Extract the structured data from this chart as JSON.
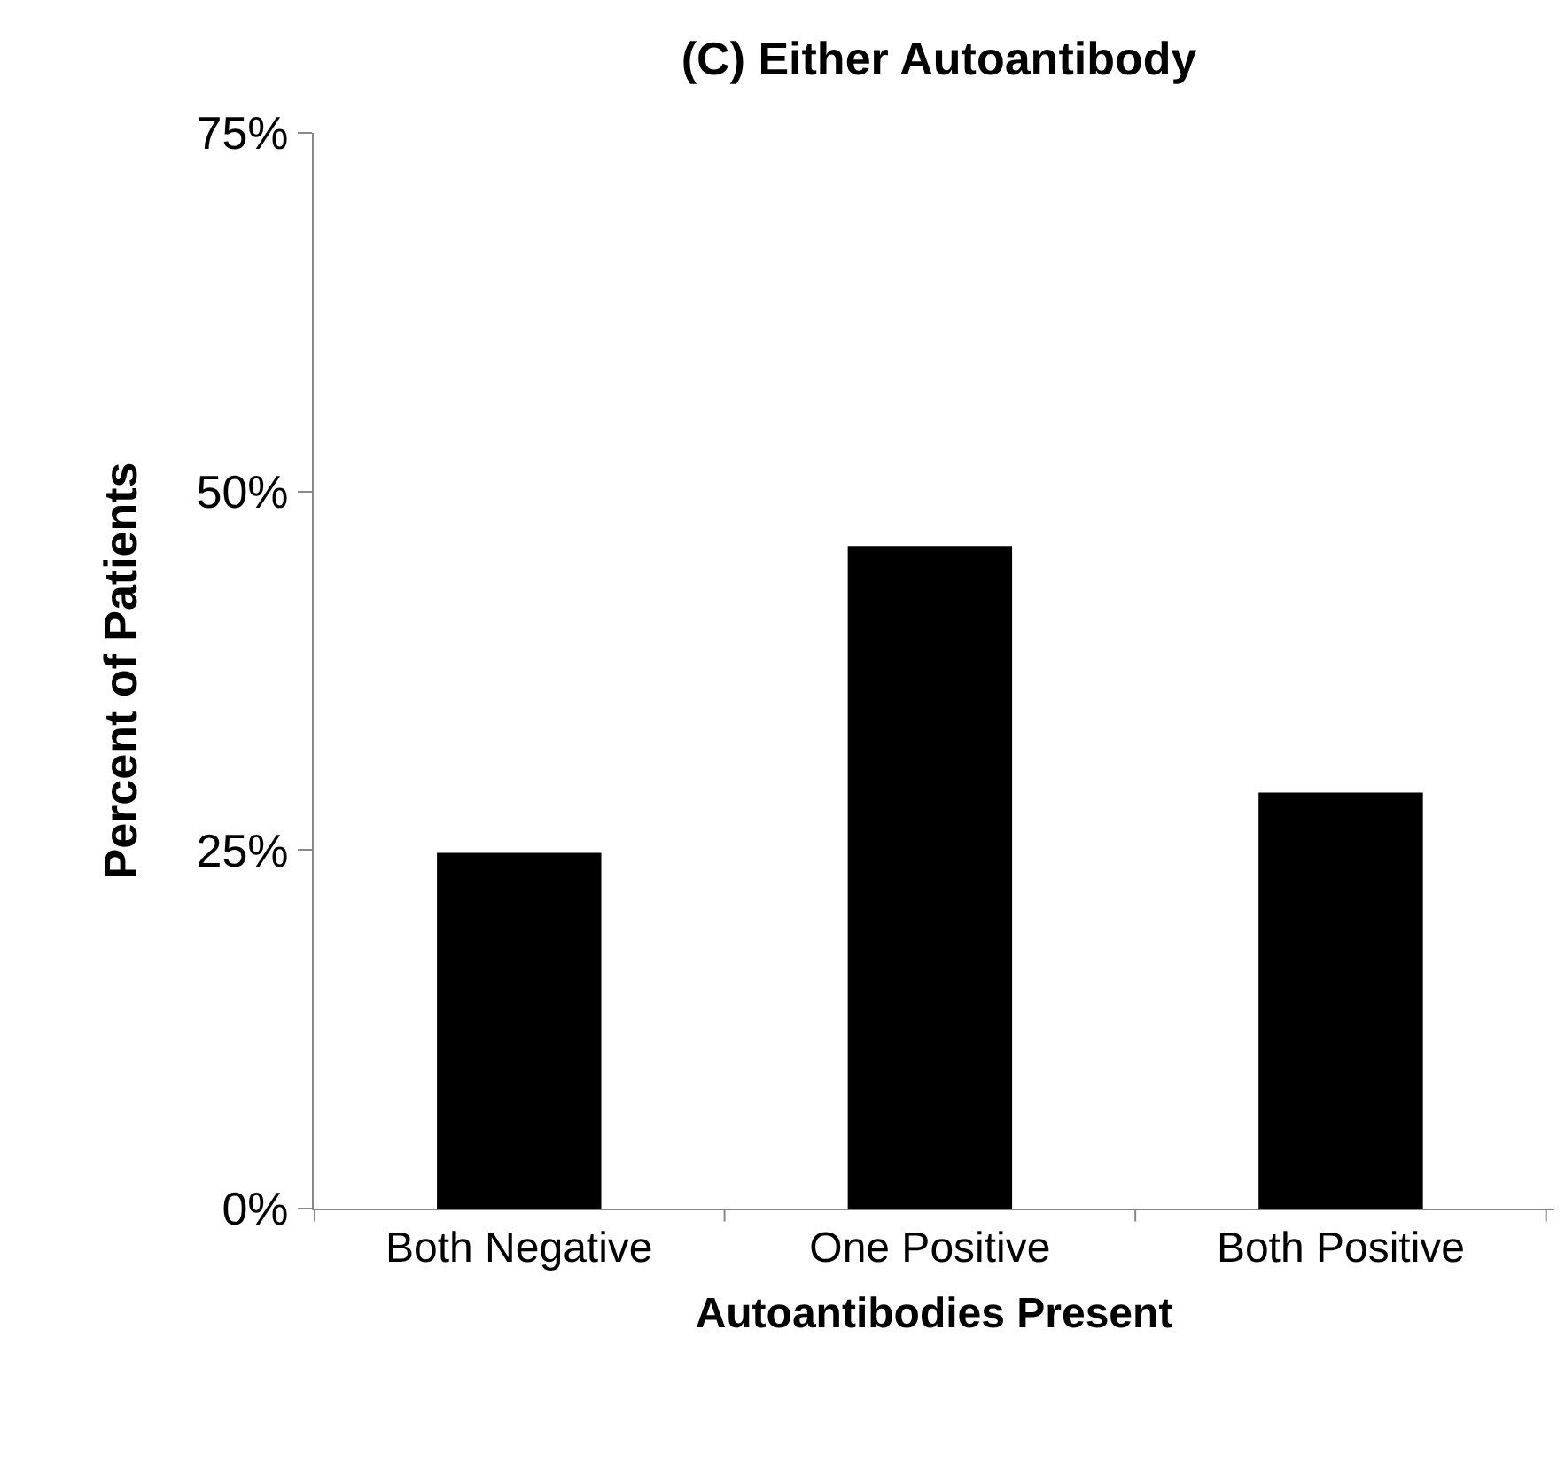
{
  "chart_data": {
    "type": "bar",
    "title": "(C) Either Autoantibody",
    "xlabel": "Autoantibodies Present",
    "ylabel": "Percent of Patients",
    "categories": [
      "Both Negative",
      "One Positive",
      "Both Positive"
    ],
    "values": [
      24.8,
      46.2,
      29.0
    ],
    "color": "#000000",
    "ylim": [
      0,
      75
    ],
    "yticks": [
      {
        "value": 0,
        "label": "0%"
      },
      {
        "value": 25,
        "label": "25%"
      },
      {
        "value": 50,
        "label": "50%"
      },
      {
        "value": 75,
        "label": "75%"
      }
    ]
  }
}
